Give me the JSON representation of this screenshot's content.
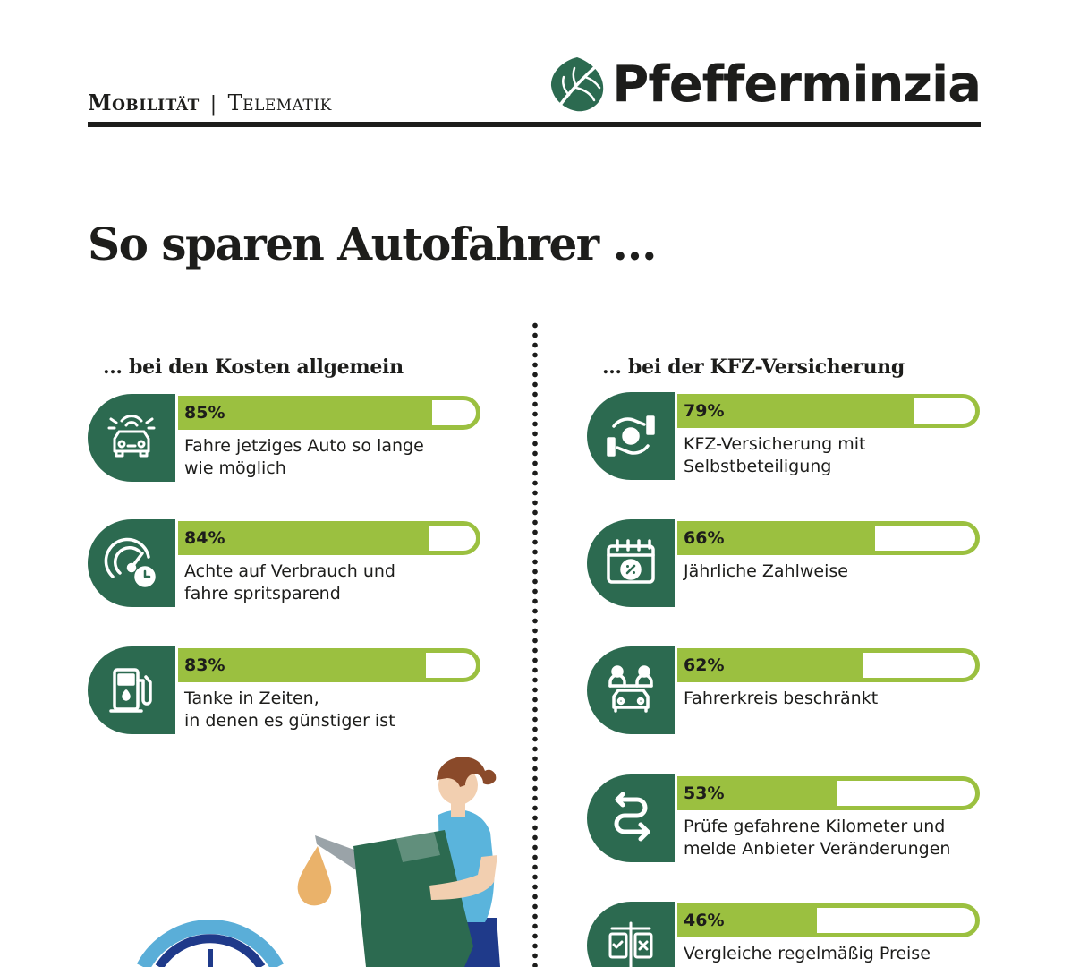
{
  "header": {
    "category": "Mobilität",
    "separator": "|",
    "subcategory": "Telematik",
    "logo_text": "Pfefferminzia"
  },
  "title": "So sparen Autofahrer …",
  "colors": {
    "dark_green": "#2c6a50",
    "lime": "#9bc040",
    "text": "#1d1d1b"
  },
  "left": {
    "heading": "… bei den Kosten allgemein",
    "items": [
      {
        "percent": "85%",
        "value": 0.85,
        "label": "Fahre jetziges Auto so lange\nwie möglich",
        "icon": "car-signal-icon"
      },
      {
        "percent": "84%",
        "value": 0.84,
        "label": "Achte auf Verbrauch und\nfahre spritsparend",
        "icon": "speedometer-clock-icon"
      },
      {
        "percent": "83%",
        "value": 0.83,
        "label": "Tanke in Zeiten,\nin denen es günstiger ist",
        "icon": "fuel-pump-icon"
      }
    ]
  },
  "right": {
    "heading": "… bei der KFZ-Versicherung",
    "items": [
      {
        "percent": "79%",
        "value": 0.79,
        "label": "KFZ-Versicherung mit\nSelbstbeteiligung",
        "icon": "hand-coin-icon"
      },
      {
        "percent": "66%",
        "value": 0.66,
        "label": "Jährliche Zahlweise",
        "icon": "calendar-percent-icon"
      },
      {
        "percent": "62%",
        "value": 0.62,
        "label": "Fahrerkreis beschränkt",
        "icon": "drivers-car-icon"
      },
      {
        "percent": "53%",
        "value": 0.53,
        "label": "Prüfe gefahrene Kilometer und\nmelde Anbieter Veränderungen",
        "icon": "route-arrows-icon"
      },
      {
        "percent": "46%",
        "value": 0.46,
        "label": "Vergleiche regelmäßig Preise\nfür KFZ-Policen",
        "icon": "compare-documents-icon"
      }
    ]
  }
}
